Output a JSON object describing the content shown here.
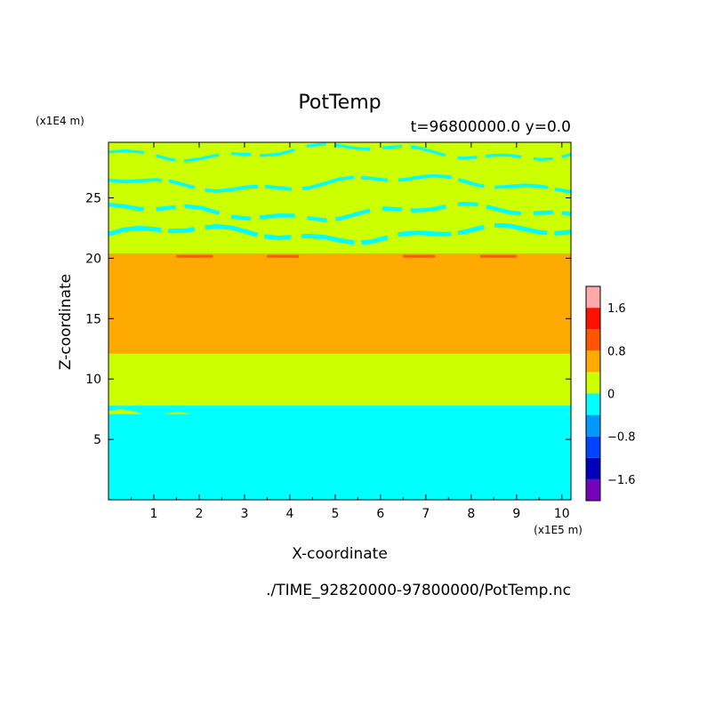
{
  "chart_data": {
    "type": "heatmap",
    "title": "PotTemp",
    "subtitle": "t=96800000.0 y=0.0",
    "xlabel": "X-coordinate",
    "ylabel": "Z-coordinate",
    "x_unit": "(x1E5 m)",
    "y_unit": "(x1E4 m)",
    "footer": "./TIME_92820000-97800000/PotTemp.nc",
    "xlim": [
      0,
      10.2
    ],
    "ylim": [
      0,
      29.6
    ],
    "x_ticks": [
      "1",
      "2",
      "3",
      "4",
      "5",
      "6",
      "7",
      "8",
      "9",
      "10"
    ],
    "y_ticks": [
      "5",
      "10",
      "15",
      "20",
      "25"
    ],
    "colorbar": {
      "levels": [
        -2.0,
        -1.6,
        -1.2,
        -0.8,
        -0.4,
        0,
        0.4,
        0.8,
        1.2,
        1.6,
        2.0
      ],
      "colors": [
        "#7700bb",
        "#0000bb",
        "#0044ff",
        "#0099ff",
        "#00ffff",
        "#ccff00",
        "#ffaa00",
        "#ff5500",
        "#ff1100",
        "#ffaaaa"
      ],
      "tick_labels": [
        "1.6",
        "0.8",
        "0",
        "−0.8",
        "−1.6"
      ],
      "tick_values": [
        1.6,
        0.8,
        0,
        -0.8,
        -1.6
      ]
    },
    "bands": [
      {
        "zmin": 0,
        "zmax": 7.1,
        "value": -0.2,
        "label": "cyan region (-0.4 to 0)"
      },
      {
        "zmin": 7.1,
        "zmax": 12.1,
        "value": 0.2,
        "label": "yellow-green region (0 to 0.4)"
      },
      {
        "zmin": 12.1,
        "zmax": 20.4,
        "value": 0.6,
        "label": "orange region (0.4 to 0.8)"
      },
      {
        "zmin": 20.4,
        "zmax": 29.6,
        "value": 0.2,
        "label": "yellow-green region with cyan streaks"
      }
    ],
    "streaks_z": [
      22.0,
      23.8,
      26.2,
      28.8
    ]
  }
}
